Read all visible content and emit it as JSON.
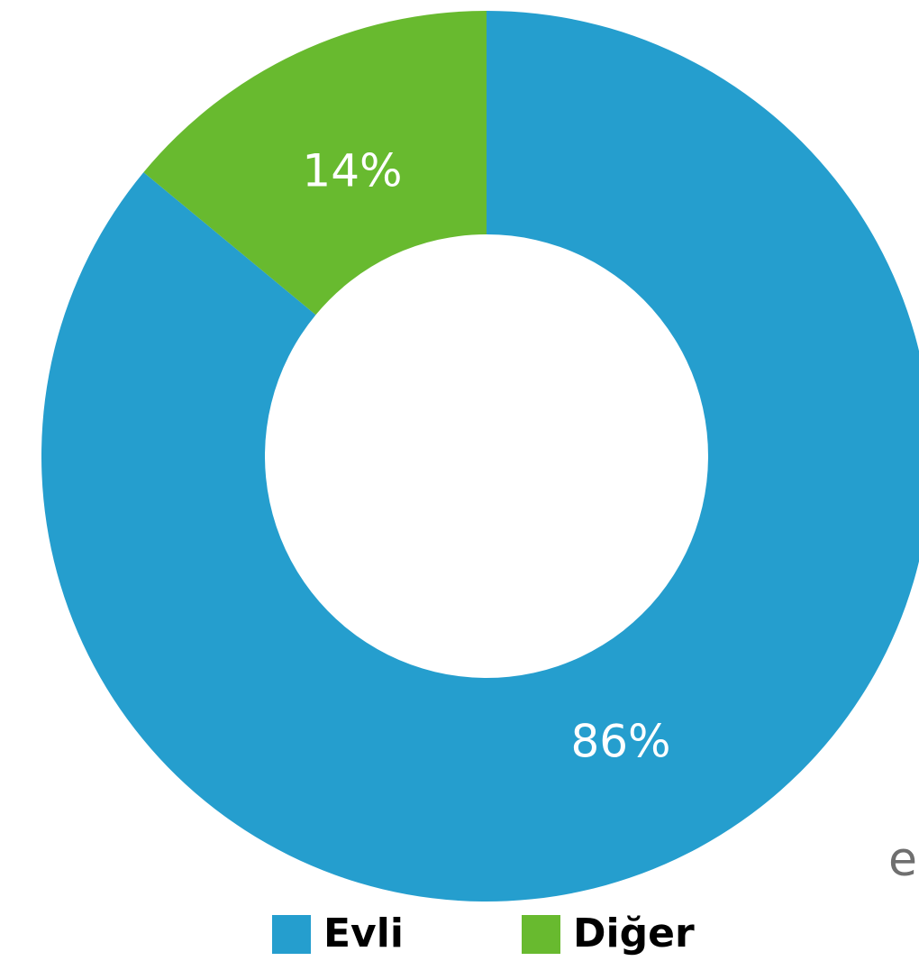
{
  "chart_data": {
    "type": "pie",
    "variant": "donut",
    "slices": [
      {
        "name": "Evli",
        "value": 86,
        "label": "86%",
        "color": "#259ECE"
      },
      {
        "name": "Diğer",
        "value": 14,
        "label": "14%",
        "color": "#68BA2F"
      }
    ],
    "legend": {
      "placement": "bottom",
      "items": [
        {
          "name": "Evli",
          "color": "#259ECE"
        },
        {
          "name": "Diğer",
          "color": "#68BA2F"
        }
      ]
    },
    "start_angle": "top, clockwise"
  },
  "stray_text": "e"
}
